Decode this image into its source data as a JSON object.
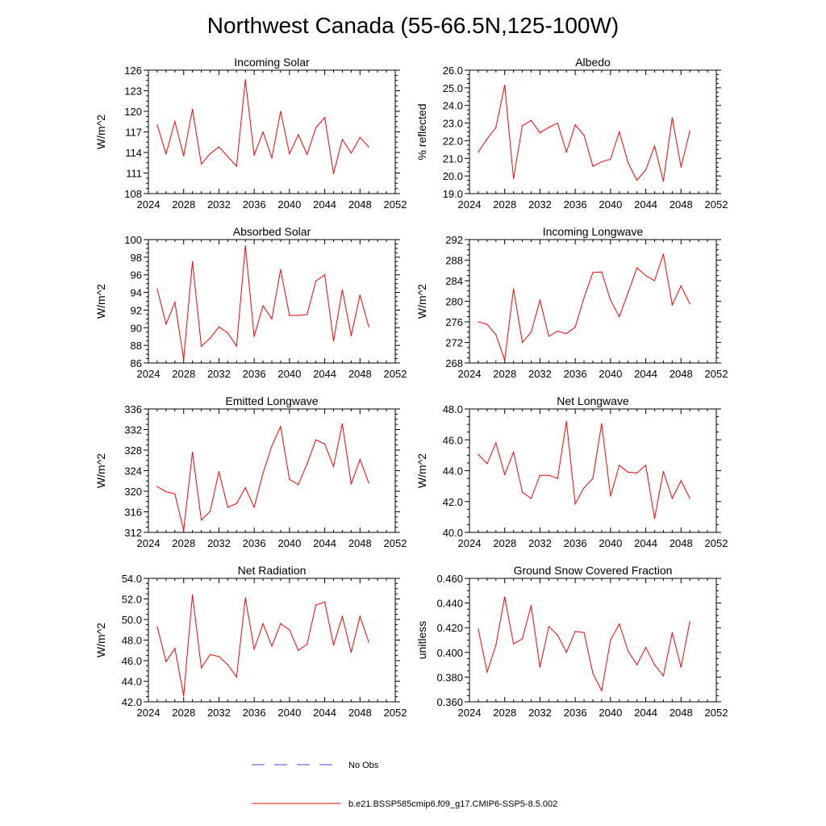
{
  "figure_title": "Northwest Canada (55-66.5N,125-100W)",
  "legend": {
    "entries": [
      {
        "label": "No Obs",
        "color": "#4444cc",
        "style": "dashed"
      },
      {
        "label": "b.e21.BSSP585cmip6.f09_g17.CMIP6-SSP5-8.5.002",
        "color": "#ff0000",
        "style": "solid"
      }
    ]
  },
  "chart_data": [
    {
      "type": "line",
      "title": "Incoming Solar",
      "ylabel": "W/m^2",
      "xlim": [
        2024,
        2052
      ],
      "ylim": [
        108,
        126
      ],
      "xticks": [
        "2024",
        "2028",
        "2032",
        "2036",
        "2040",
        "2044",
        "2048",
        "2052"
      ],
      "yticks": [
        "108",
        "111",
        "114",
        "117",
        "120",
        "123",
        "126"
      ],
      "series": [
        {
          "color": "#ff0000",
          "x": [
            2025,
            2026,
            2027,
            2028,
            2029,
            2030,
            2031,
            2032,
            2033,
            2034,
            2035,
            2036,
            2037,
            2038,
            2039,
            2040,
            2041,
            2042,
            2043,
            2044,
            2045,
            2046,
            2047,
            2048,
            2049
          ],
          "y": [
            118.0,
            113.8,
            118.5,
            113.5,
            120.3,
            112.3,
            113.8,
            114.8,
            113.4,
            112.0,
            124.6,
            113.6,
            117.0,
            113.2,
            120.0,
            113.8,
            116.6,
            113.7,
            117.6,
            119.1,
            110.9,
            115.9,
            113.9,
            116.2,
            114.8
          ]
        }
      ]
    },
    {
      "type": "line",
      "title": "Albedo",
      "ylabel": "% reflected",
      "xlim": [
        2024,
        2052
      ],
      "ylim": [
        19.0,
        26.0
      ],
      "xticks": [
        "2024",
        "2028",
        "2032",
        "2036",
        "2040",
        "2044",
        "2048",
        "2052"
      ],
      "yticks": [
        "19.0",
        "20.0",
        "21.0",
        "22.0",
        "23.0",
        "24.0",
        "25.0",
        "26.0"
      ],
      "series": [
        {
          "color": "#ff0000",
          "x": [
            2025,
            2026,
            2027,
            2028,
            2029,
            2030,
            2031,
            2032,
            2033,
            2034,
            2035,
            2036,
            2037,
            2038,
            2039,
            2040,
            2041,
            2042,
            2043,
            2044,
            2045,
            2046,
            2047,
            2048,
            2049
          ],
          "y": [
            21.35,
            22.1,
            22.75,
            25.15,
            19.85,
            22.85,
            23.15,
            22.45,
            22.75,
            23.0,
            21.35,
            22.9,
            22.3,
            20.55,
            20.8,
            20.95,
            22.5,
            20.75,
            19.75,
            20.35,
            21.7,
            19.7,
            23.3,
            20.5,
            22.55
          ]
        }
      ]
    },
    {
      "type": "line",
      "title": "Absorbed Solar",
      "ylabel": "W/m^2",
      "xlim": [
        2024,
        2052
      ],
      "ylim": [
        86,
        100
      ],
      "xticks": [
        "2024",
        "2028",
        "2032",
        "2036",
        "2040",
        "2044",
        "2048",
        "2052"
      ],
      "yticks": [
        "86",
        "88",
        "90",
        "92",
        "94",
        "96",
        "98",
        "100"
      ],
      "series": [
        {
          "color": "#ff0000",
          "x": [
            2025,
            2026,
            2027,
            2028,
            2029,
            2030,
            2031,
            2032,
            2033,
            2034,
            2035,
            2036,
            2037,
            2038,
            2039,
            2040,
            2041,
            2042,
            2043,
            2044,
            2045,
            2046,
            2047,
            2048,
            2049
          ],
          "y": [
            94.4,
            90.4,
            92.9,
            86.4,
            97.5,
            87.9,
            88.8,
            90.1,
            89.4,
            87.9,
            99.3,
            89.0,
            92.5,
            91.0,
            96.6,
            91.4,
            91.4,
            91.5,
            95.3,
            96.0,
            88.5,
            94.3,
            89.1,
            93.7,
            90.1
          ]
        }
      ]
    },
    {
      "type": "line",
      "title": "Incoming Longwave",
      "ylabel": "W/m^2",
      "xlim": [
        2024,
        2052
      ],
      "ylim": [
        268,
        292
      ],
      "xticks": [
        "2024",
        "2028",
        "2032",
        "2036",
        "2040",
        "2044",
        "2048",
        "2052"
      ],
      "yticks": [
        "268",
        "272",
        "276",
        "280",
        "284",
        "288",
        "292"
      ],
      "series": [
        {
          "color": "#ff0000",
          "x": [
            2025,
            2026,
            2027,
            2028,
            2029,
            2030,
            2031,
            2032,
            2033,
            2034,
            2035,
            2036,
            2037,
            2038,
            2039,
            2040,
            2041,
            2042,
            2043,
            2044,
            2045,
            2046,
            2047,
            2048,
            2049
          ],
          "y": [
            276.0,
            275.5,
            273.5,
            268.6,
            282.4,
            272.0,
            274.0,
            280.2,
            273.2,
            274.2,
            273.7,
            275.0,
            280.7,
            285.6,
            285.7,
            280.2,
            277.0,
            281.7,
            286.5,
            285.0,
            284.0,
            289.2,
            279.3,
            283.0,
            279.5
          ]
        }
      ]
    },
    {
      "type": "line",
      "title": "Emitted Longwave",
      "ylabel": "W/m^2",
      "xlim": [
        2024,
        2052
      ],
      "ylim": [
        312,
        336
      ],
      "xticks": [
        "2024",
        "2028",
        "2032",
        "2036",
        "2040",
        "2044",
        "2048",
        "2052"
      ],
      "yticks": [
        "312",
        "316",
        "320",
        "324",
        "328",
        "332",
        "336"
      ],
      "series": [
        {
          "color": "#ff0000",
          "x": [
            2025,
            2026,
            2027,
            2028,
            2029,
            2030,
            2031,
            2032,
            2033,
            2034,
            2035,
            2036,
            2037,
            2038,
            2039,
            2040,
            2041,
            2042,
            2043,
            2044,
            2045,
            2046,
            2047,
            2048,
            2049
          ],
          "y": [
            320.9,
            319.9,
            319.5,
            312.4,
            327.6,
            314.4,
            316.1,
            323.8,
            316.9,
            317.6,
            320.7,
            316.9,
            323.5,
            328.8,
            332.6,
            322.3,
            321.3,
            325.3,
            330.0,
            329.2,
            324.8,
            333.1,
            321.4,
            326.2,
            321.6
          ]
        }
      ]
    },
    {
      "type": "line",
      "title": "Net Longwave",
      "ylabel": "W/m^2",
      "xlim": [
        2024,
        2052
      ],
      "ylim": [
        40.0,
        48.0
      ],
      "xticks": [
        "2024",
        "2028",
        "2032",
        "2036",
        "2040",
        "2044",
        "2048",
        "2052"
      ],
      "yticks": [
        "40.0",
        "42.0",
        "44.0",
        "46.0",
        "48.0"
      ],
      "series": [
        {
          "color": "#ff0000",
          "x": [
            2025,
            2026,
            2027,
            2028,
            2029,
            2030,
            2031,
            2032,
            2033,
            2034,
            2035,
            2036,
            2037,
            2038,
            2039,
            2040,
            2041,
            2042,
            2043,
            2044,
            2045,
            2046,
            2047,
            2048,
            2049
          ],
          "y": [
            45.05,
            44.45,
            45.8,
            43.75,
            45.2,
            42.6,
            42.2,
            43.7,
            43.7,
            43.5,
            47.2,
            41.85,
            42.9,
            43.5,
            47.05,
            42.35,
            44.35,
            43.9,
            43.85,
            44.35,
            40.9,
            43.95,
            42.2,
            43.35,
            42.2
          ]
        }
      ]
    },
    {
      "type": "line",
      "title": "Net Radiation",
      "ylabel": "W/m^2",
      "xlim": [
        2024,
        2052
      ],
      "ylim": [
        42.0,
        54.0
      ],
      "xticks": [
        "2024",
        "2028",
        "2032",
        "2036",
        "2040",
        "2044",
        "2048",
        "2052"
      ],
      "yticks": [
        "42.0",
        "44.0",
        "46.0",
        "48.0",
        "50.0",
        "52.0",
        "54.0"
      ],
      "series": [
        {
          "color": "#ff0000",
          "x": [
            2025,
            2026,
            2027,
            2028,
            2029,
            2030,
            2031,
            2032,
            2033,
            2034,
            2035,
            2036,
            2037,
            2038,
            2039,
            2040,
            2041,
            2042,
            2043,
            2044,
            2045,
            2046,
            2047,
            2048,
            2049
          ],
          "y": [
            49.3,
            45.9,
            47.2,
            42.6,
            52.4,
            45.3,
            46.6,
            46.4,
            45.6,
            44.4,
            52.1,
            47.1,
            49.6,
            47.4,
            49.6,
            49.0,
            47.0,
            47.6,
            51.4,
            51.7,
            47.5,
            50.3,
            46.8,
            50.3,
            47.8
          ]
        }
      ]
    },
    {
      "type": "line",
      "title": "Ground Snow Covered Fraction",
      "ylabel": "unitless",
      "xlim": [
        2024,
        2052
      ],
      "ylim": [
        0.36,
        0.46
      ],
      "xticks": [
        "2024",
        "2028",
        "2032",
        "2036",
        "2040",
        "2044",
        "2048",
        "2052"
      ],
      "yticks": [
        "0.360",
        "0.380",
        "0.400",
        "0.420",
        "0.440",
        "0.460"
      ],
      "series": [
        {
          "color": "#ff0000",
          "x": [
            2025,
            2026,
            2027,
            2028,
            2029,
            2030,
            2031,
            2032,
            2033,
            2034,
            2035,
            2036,
            2037,
            2038,
            2039,
            2040,
            2041,
            2042,
            2043,
            2044,
            2045,
            2046,
            2047,
            2048,
            2049
          ],
          "y": [
            0.419,
            0.384,
            0.406,
            0.445,
            0.407,
            0.411,
            0.438,
            0.388,
            0.421,
            0.414,
            0.4,
            0.417,
            0.416,
            0.383,
            0.369,
            0.41,
            0.423,
            0.401,
            0.39,
            0.404,
            0.39,
            0.381,
            0.416,
            0.388,
            0.425
          ]
        }
      ]
    }
  ]
}
